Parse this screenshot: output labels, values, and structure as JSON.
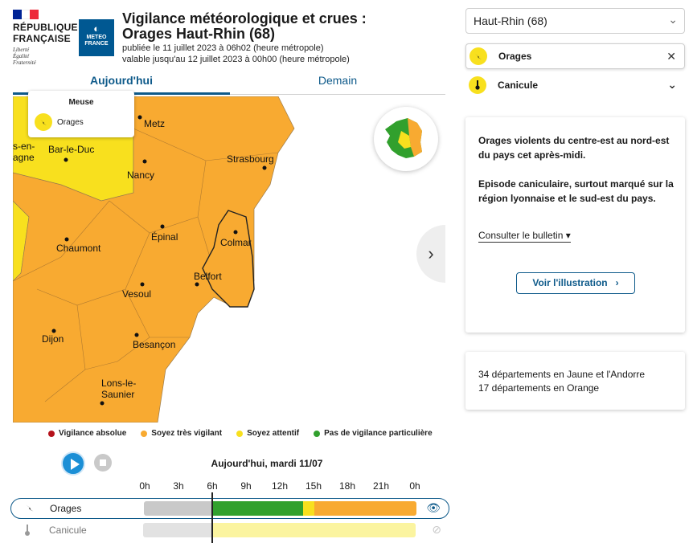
{
  "header": {
    "rf_name_line1": "RÉPUBLIQUE",
    "rf_name_line2": "FRANÇAISE",
    "rf_motto": [
      "Liberté",
      "Égalité",
      "Fraternité"
    ],
    "mf_logo_line1": "METEO",
    "mf_logo_line2": "FRANCE",
    "title_line1": "Vigilance météorologique et crues :",
    "title_line2": "Orages Haut-Rhin (68)",
    "published": "publiée le 11 juillet 2023 à 06h02 (heure métropole)",
    "valid_until": "valable jusqu'au 12 juillet 2023 à 00h00 (heure métropole)"
  },
  "tabs": {
    "today": "Aujourd'hui",
    "tomorrow": "Demain"
  },
  "tooltip": {
    "department": "Meuse",
    "phenomenon": "Orages"
  },
  "map": {
    "cities": [
      "Metz",
      "Bar-le-Duc",
      "Strasbourg",
      "Nancy",
      "Épinal",
      "Colmar",
      "Chaumont",
      "Belfort",
      "Vesoul",
      "Dijon",
      "Besançon",
      "Lons-le-",
      "Saunier",
      "s-en-",
      "agne"
    ]
  },
  "legend": [
    {
      "label": "Vigilance absolue",
      "color": "#b5121b"
    },
    {
      "label": "Soyez très vigilant",
      "color": "#f8aa31"
    },
    {
      "label": "Soyez attentif",
      "color": "#f8e01e"
    },
    {
      "label": "Pas de vigilance particulière",
      "color": "#31a02d"
    }
  ],
  "timeline": {
    "day_label": "Aujourd'hui, mardi 11/07",
    "hours": [
      "0h",
      "3h",
      "6h",
      "9h",
      "12h",
      "15h",
      "18h",
      "21h",
      "0h"
    ],
    "current_hour": 6,
    "rows": [
      {
        "label": "Orages",
        "icon": "lightning-icon",
        "segments": [
          {
            "from": 0,
            "to": 6,
            "color": "#c9c9c9"
          },
          {
            "from": 6,
            "to": 14,
            "color": "#31a02d"
          },
          {
            "from": 14,
            "to": 15,
            "color": "#f8e01e"
          },
          {
            "from": 15,
            "to": 24,
            "color": "#f8aa31"
          }
        ]
      },
      {
        "label": "Canicule",
        "icon": "thermometer-icon",
        "segments": [
          {
            "from": 0,
            "to": 6,
            "color": "#e2e2e2"
          },
          {
            "from": 6,
            "to": 24,
            "color": "#fbf4a0"
          }
        ]
      }
    ]
  },
  "panel": {
    "department_select": "Haut-Rhin (68)",
    "phenomena": [
      "Orages",
      "Canicule"
    ],
    "bulletin_p1": "Orages violents du centre-est au nord-est du pays cet après-midi.",
    "bulletin_p2": "Episode caniculaire, surtout marqué sur la région lyonnaise et le sud-est du pays.",
    "consult_bulletin": "Consulter le bulletin",
    "view_illustration": "Voir l'illustration",
    "summary_line1": "34 départements en Jaune et l'Andorre",
    "summary_line2": "17 départements en Orange"
  }
}
